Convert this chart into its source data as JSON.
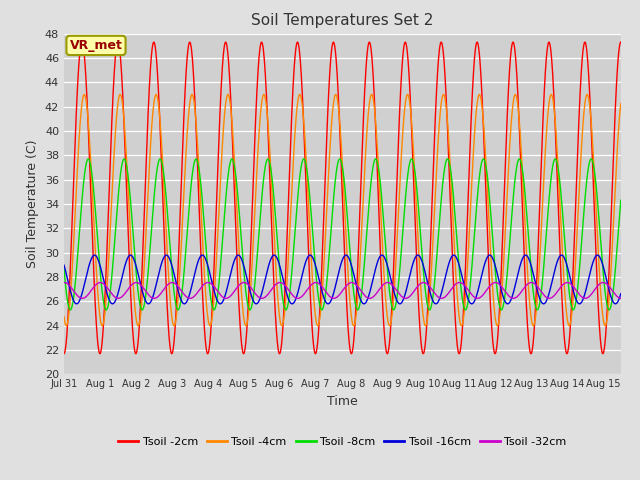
{
  "title": "Soil Temperatures Set 2",
  "xlabel": "Time",
  "ylabel": "Soil Temperature (C)",
  "ylim": [
    20,
    48
  ],
  "yticks": [
    20,
    22,
    24,
    26,
    28,
    30,
    32,
    34,
    36,
    38,
    40,
    42,
    44,
    46,
    48
  ],
  "background_color": "#e0e0e0",
  "plot_bg_color": "#d0d0d0",
  "annotation_label": "VR_met",
  "annotation_bg": "#ffffaa",
  "annotation_border": "#999900",
  "annotation_text_color": "#990000",
  "series": [
    {
      "label": "Tsoil -2cm",
      "color": "#ff0000",
      "amplitude": 12.8,
      "mean": 34.5,
      "phase": 0.0,
      "lw": 1.0
    },
    {
      "label": "Tsoil -4cm",
      "color": "#ff8800",
      "amplitude": 9.5,
      "mean": 33.5,
      "phase": 0.4,
      "lw": 1.0
    },
    {
      "label": "Tsoil -8cm",
      "color": "#00dd00",
      "amplitude": 6.2,
      "mean": 31.5,
      "phase": 1.1,
      "lw": 1.0
    },
    {
      "label": "Tsoil -16cm",
      "color": "#0000dd",
      "amplitude": 2.0,
      "mean": 27.8,
      "phase": 2.2,
      "lw": 1.0
    },
    {
      "label": "Tsoil -32cm",
      "color": "#cc00cc",
      "amplitude": 0.65,
      "mean": 26.9,
      "phase": 3.2,
      "lw": 1.0
    }
  ],
  "xlim": [
    0,
    15.5
  ],
  "xtick_positions": [
    0,
    1,
    2,
    3,
    4,
    5,
    6,
    7,
    8,
    9,
    10,
    11,
    12,
    13,
    14,
    15
  ],
  "xtick_labels": [
    "Jul 31",
    "Aug 1",
    "Aug 2",
    "Aug 3",
    "Aug 4",
    "Aug 5",
    "Aug 6",
    "Aug 7",
    "Aug 8",
    "Aug 9",
    "Aug 10",
    "Aug 11",
    "Aug 12",
    "Aug 13",
    "Aug 14",
    "Aug 15"
  ],
  "period": 1.0,
  "npoints": 3000
}
